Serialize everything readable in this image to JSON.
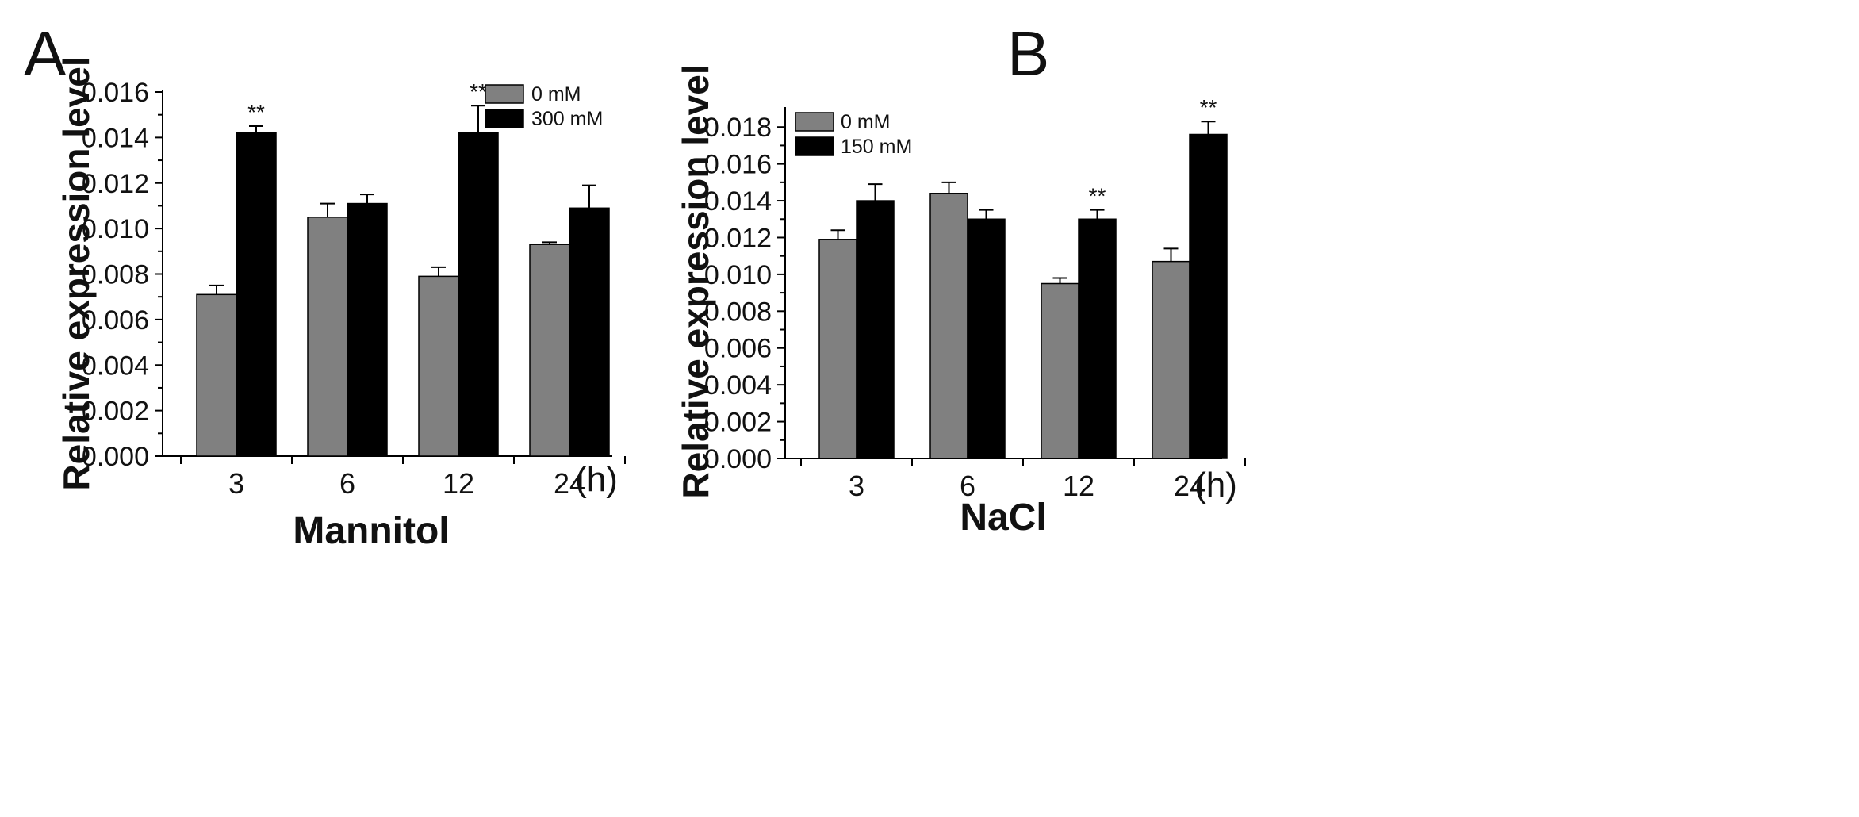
{
  "chart_data": [
    {
      "type": "bar",
      "panel": "A",
      "title": "",
      "xlabel": "Mannitol",
      "ylabel": "Relative expression level",
      "x_unit": "(h)",
      "categories": [
        "3",
        "6",
        "12",
        "24"
      ],
      "ylim": [
        0,
        0.016
      ],
      "yticks": [
        "0.000",
        "0.002",
        "0.004",
        "0.006",
        "0.008",
        "0.010",
        "0.012",
        "0.014",
        "0.016"
      ],
      "yticks_values": [
        0,
        0.002,
        0.004,
        0.006,
        0.008,
        0.01,
        0.012,
        0.014,
        0.016
      ],
      "legend_position": "top-right",
      "series": [
        {
          "name": "0 mM",
          "color": "#808080",
          "values": [
            0.0071,
            0.0105,
            0.0079,
            0.0093
          ],
          "errors": [
            0.0004,
            0.0006,
            0.0004,
            0.0001
          ]
        },
        {
          "name": "300 mM",
          "color": "#000000",
          "values": [
            0.0142,
            0.0111,
            0.0142,
            0.0109
          ],
          "errors": [
            0.0003,
            0.0004,
            0.0012,
            0.001
          ]
        }
      ],
      "annotations": [
        {
          "series": 1,
          "category": 0,
          "text": "**"
        },
        {
          "series": 1,
          "category": 2,
          "text": "**"
        }
      ]
    },
    {
      "type": "bar",
      "panel": "B",
      "title": "",
      "xlabel": "NaCl",
      "ylabel": "Relative expression level",
      "x_unit": "(h)",
      "categories": [
        "3",
        "6",
        "12",
        "24"
      ],
      "ylim": [
        0,
        0.019
      ],
      "yticks": [
        "0.000",
        "0.002",
        "0.004",
        "0.006",
        "0.008",
        "0.010",
        "0.012",
        "0.014",
        "0.016",
        "0.018"
      ],
      "yticks_values": [
        0,
        0.002,
        0.004,
        0.006,
        0.008,
        0.01,
        0.012,
        0.014,
        0.016,
        0.018
      ],
      "legend_position": "top-left",
      "series": [
        {
          "name": "0 mM",
          "color": "#808080",
          "values": [
            0.0119,
            0.0144,
            0.0095,
            0.0107
          ],
          "errors": [
            0.0005,
            0.0006,
            0.0003,
            0.0007
          ]
        },
        {
          "name": "150 mM",
          "color": "#000000",
          "values": [
            0.014,
            0.013,
            0.013,
            0.0176
          ],
          "errors": [
            0.0009,
            0.0005,
            0.0005,
            0.0007
          ]
        }
      ],
      "annotations": [
        {
          "series": 1,
          "category": 2,
          "text": "**"
        },
        {
          "series": 1,
          "category": 3,
          "text": "**"
        }
      ]
    }
  ]
}
